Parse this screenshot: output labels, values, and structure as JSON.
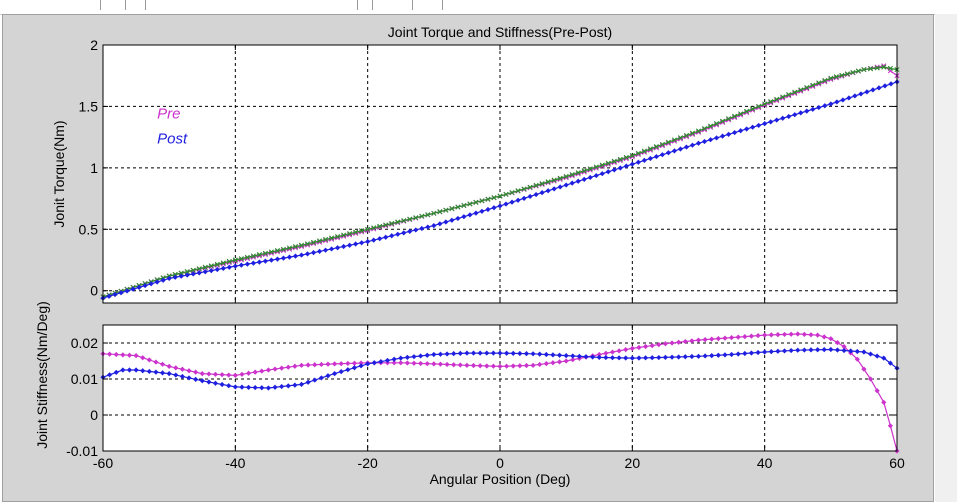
{
  "chart_data": [
    {
      "type": "scatter",
      "title": "Joint Torque and Stiffness(Pre-Post)",
      "xlabel": "",
      "ylabel": "Jonit Torque(Nm)",
      "xlim": [
        -60,
        60
      ],
      "ylim": [
        -0.1,
        2
      ],
      "xticks": [
        -60,
        -40,
        -20,
        0,
        20,
        40,
        60
      ],
      "xtick_labels": [],
      "yticks": [
        0,
        0.5,
        1,
        1.5,
        2
      ],
      "ytick_labels": [
        "0",
        "0.5",
        "1",
        "1.5",
        "2"
      ],
      "grid": true,
      "annotations": [
        {
          "text": "Pre",
          "color": "#cc33cc",
          "x": -50,
          "y": 1.4
        },
        {
          "text": "Post",
          "color": "#1f1fe0",
          "x": -50,
          "y": 1.2
        }
      ],
      "series": [
        {
          "name": "Pre",
          "color": "#cc33cc",
          "marker": "x",
          "x": [
            -60,
            -50,
            -40,
            -30,
            -20,
            -10,
            0,
            10,
            20,
            30,
            40,
            50,
            55,
            58,
            60
          ],
          "y": [
            -0.05,
            0.12,
            0.24,
            0.36,
            0.49,
            0.63,
            0.77,
            0.92,
            1.09,
            1.29,
            1.51,
            1.72,
            1.8,
            1.83,
            1.75
          ]
        },
        {
          "color": "#2e8b2e",
          "marker": "x",
          "x": [
            -60,
            -50,
            -40,
            -30,
            -20,
            -10,
            0,
            10,
            20,
            30,
            40,
            50,
            55,
            58,
            60
          ],
          "y": [
            -0.05,
            0.12,
            0.25,
            0.37,
            0.5,
            0.63,
            0.77,
            0.93,
            1.1,
            1.3,
            1.52,
            1.73,
            1.8,
            1.82,
            1.8
          ]
        },
        {
          "color": "#1f1fe0",
          "marker": "diamond",
          "x": [
            -60,
            -50,
            -40,
            -30,
            -20,
            -10,
            0,
            10,
            20,
            30,
            40,
            50,
            60
          ],
          "y": [
            -0.06,
            0.1,
            0.2,
            0.29,
            0.4,
            0.53,
            0.69,
            0.86,
            1.03,
            1.2,
            1.36,
            1.52,
            1.7
          ]
        }
      ]
    },
    {
      "type": "line",
      "title": "",
      "xlabel": "Angular Position (Deg)",
      "ylabel": "Joint Stiffness(Nm/Deg)",
      "xlim": [
        -60,
        60
      ],
      "ylim": [
        -0.01,
        0.025
      ],
      "xticks": [
        -60,
        -40,
        -20,
        0,
        20,
        40,
        60
      ],
      "xtick_labels": [
        "-60",
        "-40",
        "-20",
        "0",
        "20",
        "40",
        "60"
      ],
      "yticks": [
        -0.01,
        0,
        0.01,
        0.02
      ],
      "ytick_labels": [
        "-0.01",
        "0",
        "0.01",
        "0.02"
      ],
      "grid": true,
      "series": [
        {
          "color": "#cc33cc",
          "marker": "diamond",
          "x": [
            -60,
            -55,
            -50,
            -45,
            -40,
            -35,
            -30,
            -25,
            -20,
            -15,
            -10,
            -5,
            0,
            5,
            10,
            15,
            20,
            25,
            30,
            35,
            40,
            45,
            48,
            50,
            52,
            54,
            56,
            58,
            59,
            60
          ],
          "y": [
            0.017,
            0.0165,
            0.0135,
            0.0115,
            0.011,
            0.0125,
            0.0138,
            0.0142,
            0.0145,
            0.0145,
            0.0142,
            0.0138,
            0.0135,
            0.0138,
            0.015,
            0.0168,
            0.0185,
            0.0198,
            0.0208,
            0.0215,
            0.0222,
            0.0225,
            0.0222,
            0.0212,
            0.019,
            0.0155,
            0.01,
            0.0035,
            -0.003,
            -0.01
          ]
        },
        {
          "color": "#1f1fe0",
          "marker": "diamond",
          "x": [
            -60,
            -57,
            -55,
            -50,
            -45,
            -40,
            -35,
            -30,
            -25,
            -20,
            -15,
            -10,
            -5,
            0,
            5,
            10,
            15,
            20,
            25,
            30,
            35,
            40,
            45,
            50,
            55,
            58,
            60
          ],
          "y": [
            0.0105,
            0.0125,
            0.0125,
            0.0115,
            0.0095,
            0.0078,
            0.0075,
            0.0085,
            0.0115,
            0.0142,
            0.0158,
            0.0168,
            0.0172,
            0.0172,
            0.017,
            0.0165,
            0.016,
            0.0158,
            0.016,
            0.0163,
            0.0168,
            0.0175,
            0.018,
            0.0182,
            0.0175,
            0.0158,
            0.013
          ]
        }
      ]
    }
  ]
}
